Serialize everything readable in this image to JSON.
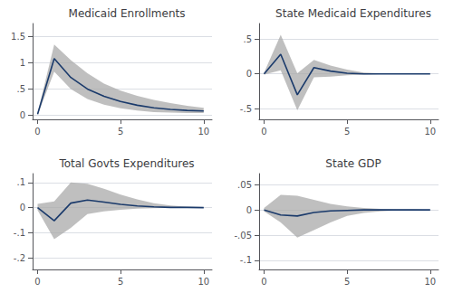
{
  "chart_data": [
    {
      "type": "line",
      "title": "Medicaid Enrollments",
      "x": [
        0,
        1,
        2,
        3,
        4,
        5,
        6,
        7,
        8,
        9,
        10
      ],
      "series": [
        {
          "type": "band",
          "color": "#aaaaaa",
          "lower": [
            0.0,
            0.83,
            0.5,
            0.31,
            0.2,
            0.13,
            0.09,
            0.06,
            0.05,
            0.04,
            0.04
          ],
          "upper": [
            0.04,
            1.35,
            1.05,
            0.8,
            0.6,
            0.47,
            0.37,
            0.29,
            0.23,
            0.18,
            0.14
          ]
        },
        {
          "type": "line",
          "color": "#1a3a6b",
          "values": [
            0.02,
            1.08,
            0.72,
            0.5,
            0.36,
            0.26,
            0.19,
            0.14,
            0.11,
            0.09,
            0.08
          ]
        }
      ],
      "xlim": [
        -0.3,
        10.5
      ],
      "xticks": [
        0,
        5,
        10
      ],
      "ylim": [
        -0.08,
        1.75
      ],
      "yticks": [
        0,
        {
          "value": 0.5,
          "label": ".5"
        },
        1,
        1.5
      ],
      "grid": true
    },
    {
      "type": "line",
      "title": "State Medicaid Expenditures",
      "x": [
        0,
        1,
        2,
        3,
        4,
        5,
        6,
        7,
        8,
        9,
        10
      ],
      "series": [
        {
          "type": "band",
          "color": "#aaaaaa",
          "lower": [
            -0.01,
            0.05,
            -0.52,
            -0.05,
            -0.04,
            -0.02,
            -0.01,
            -0.005,
            0.0,
            0.0,
            0.0
          ],
          "upper": [
            0.02,
            0.56,
            0.01,
            0.2,
            0.12,
            0.06,
            0.02,
            0.01,
            0.005,
            0.0,
            0.0
          ]
        },
        {
          "type": "line",
          "color": "#1a3a6b",
          "values": [
            0.0,
            0.28,
            -0.3,
            0.09,
            0.04,
            0.01,
            0.0,
            0.0,
            0.0,
            0.0,
            0.0
          ]
        }
      ],
      "xlim": [
        -0.3,
        10.5
      ],
      "xticks": [
        0,
        5,
        10
      ],
      "ylim": [
        -0.65,
        0.72
      ],
      "yticks": [
        {
          "value": -0.5,
          "label": "-.5"
        },
        0,
        {
          "value": 0.5,
          "label": ".5"
        }
      ],
      "grid": true
    },
    {
      "type": "line",
      "title": "Total Govts Expenditures",
      "x": [
        0,
        1,
        2,
        3,
        4,
        5,
        6,
        7,
        8,
        9,
        10
      ],
      "series": [
        {
          "type": "band",
          "color": "#aaaaaa",
          "lower": [
            -0.01,
            -0.125,
            -0.08,
            -0.025,
            -0.015,
            -0.008,
            -0.004,
            -0.002,
            -0.001,
            0.0,
            0.0
          ],
          "upper": [
            0.015,
            0.025,
            0.1,
            0.095,
            0.075,
            0.052,
            0.033,
            0.018,
            0.009,
            0.004,
            0.002
          ]
        },
        {
          "type": "line",
          "color": "#1a3a6b",
          "values": [
            0.0,
            -0.052,
            0.018,
            0.03,
            0.022,
            0.013,
            0.007,
            0.003,
            0.001,
            0.001,
            0.0
          ]
        }
      ],
      "xlim": [
        -0.3,
        10.5
      ],
      "xticks": [
        0,
        5,
        10
      ],
      "ylim": [
        -0.245,
        0.135
      ],
      "yticks": [
        {
          "value": -0.2,
          "label": "-.2"
        },
        {
          "value": -0.1,
          "label": "-.1"
        },
        0,
        {
          "value": 0.1,
          "label": ".1"
        }
      ],
      "grid": true
    },
    {
      "type": "line",
      "title": "State GDP",
      "x": [
        0,
        1,
        2,
        3,
        4,
        5,
        6,
        7,
        8,
        9,
        10
      ],
      "series": [
        {
          "type": "band",
          "color": "#aaaaaa",
          "lower": [
            -0.003,
            -0.025,
            -0.055,
            -0.04,
            -0.025,
            -0.012,
            -0.006,
            -0.003,
            -0.001,
            0.0,
            0.0
          ],
          "upper": [
            0.004,
            0.03,
            0.028,
            0.02,
            0.012,
            0.007,
            0.004,
            0.002,
            0.001,
            0.001,
            0.0
          ]
        },
        {
          "type": "line",
          "color": "#1a3a6b",
          "values": [
            0.0,
            -0.01,
            -0.012,
            -0.005,
            -0.002,
            -0.001,
            0.0,
            0.0,
            0.0,
            0.0,
            0.0
          ]
        }
      ],
      "xlim": [
        -0.3,
        10.5
      ],
      "xticks": [
        0,
        5,
        10
      ],
      "ylim": [
        -0.118,
        0.072
      ],
      "yticks": [
        {
          "value": -0.1,
          "label": "-.1"
        },
        {
          "value": -0.05,
          "label": "-.05"
        },
        0,
        {
          "value": 0.05,
          "label": ".05"
        }
      ],
      "grid": true
    }
  ]
}
